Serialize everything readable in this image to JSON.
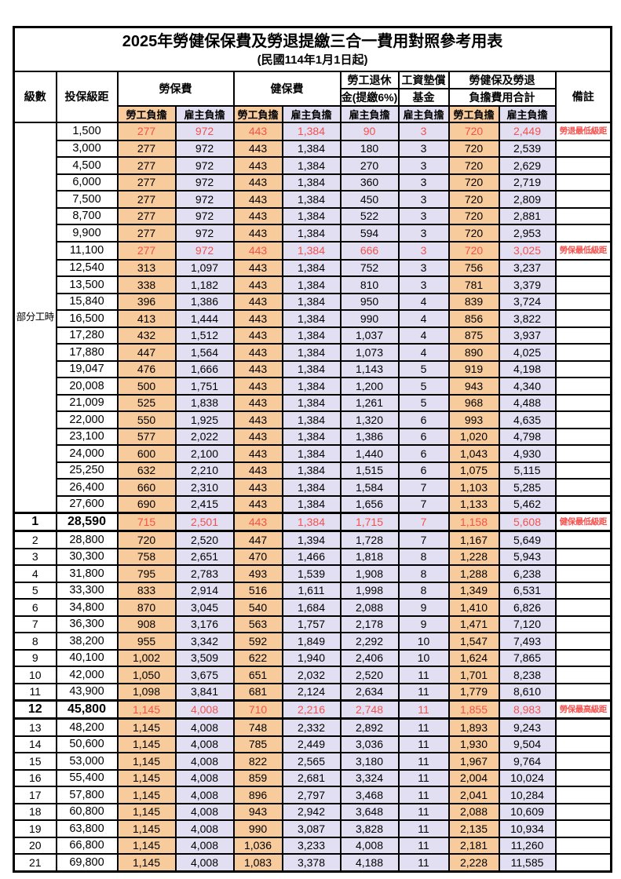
{
  "title": "2025年勞健保保費及勞退提繳三合一費用對照參考用表",
  "subtitle": "(民國114年1月1日起)",
  "header": {
    "level": "級數",
    "salary_bracket": "投保級距",
    "labor_insurance": "勞保費",
    "health_insurance": "健保費",
    "pension_line1": "勞工退休",
    "pension_line2": "金(提繳6%)",
    "wage_arrears_line1": "工資墊償",
    "wage_arrears_line2": "基金",
    "total_line1": "勞健保及勞退",
    "total_line2": "負擔費用合計",
    "remark": "備註",
    "employee_label": "勞工負擔",
    "employer_label": "雇主負擔"
  },
  "part_time_label": "部分工時",
  "part_time_rowspan": 23,
  "colors": {
    "employee_bg": "#F8CB9C",
    "employer_bg": "#E2DFF2",
    "highlight_text": "#F4514E"
  },
  "rows": [
    {
      "level": null,
      "salary": "1,500",
      "values": [
        "277",
        "972",
        "443",
        "1,384",
        "90",
        "3",
        "720",
        "2,449"
      ],
      "remark": "勞退最低級距",
      "highlight": true,
      "emphasis": false
    },
    {
      "level": null,
      "salary": "3,000",
      "values": [
        "277",
        "972",
        "443",
        "1,384",
        "180",
        "3",
        "720",
        "2,539"
      ],
      "remark": "",
      "highlight": false,
      "emphasis": false
    },
    {
      "level": null,
      "salary": "4,500",
      "values": [
        "277",
        "972",
        "443",
        "1,384",
        "270",
        "3",
        "720",
        "2,629"
      ],
      "remark": "",
      "highlight": false,
      "emphasis": false
    },
    {
      "level": null,
      "salary": "6,000",
      "values": [
        "277",
        "972",
        "443",
        "1,384",
        "360",
        "3",
        "720",
        "2,719"
      ],
      "remark": "",
      "highlight": false,
      "emphasis": false
    },
    {
      "level": null,
      "salary": "7,500",
      "values": [
        "277",
        "972",
        "443",
        "1,384",
        "450",
        "3",
        "720",
        "2,809"
      ],
      "remark": "",
      "highlight": false,
      "emphasis": false
    },
    {
      "level": null,
      "salary": "8,700",
      "values": [
        "277",
        "972",
        "443",
        "1,384",
        "522",
        "3",
        "720",
        "2,881"
      ],
      "remark": "",
      "highlight": false,
      "emphasis": false
    },
    {
      "level": null,
      "salary": "9,900",
      "values": [
        "277",
        "972",
        "443",
        "1,384",
        "594",
        "3",
        "720",
        "2,953"
      ],
      "remark": "",
      "highlight": false,
      "emphasis": false
    },
    {
      "level": null,
      "salary": "11,100",
      "values": [
        "277",
        "972",
        "443",
        "1,384",
        "666",
        "3",
        "720",
        "3,025"
      ],
      "remark": "勞保最低級距",
      "highlight": true,
      "emphasis": false
    },
    {
      "level": null,
      "salary": "12,540",
      "values": [
        "313",
        "1,097",
        "443",
        "1,384",
        "752",
        "3",
        "756",
        "3,237"
      ],
      "remark": "",
      "highlight": false,
      "emphasis": false
    },
    {
      "level": null,
      "salary": "13,500",
      "values": [
        "338",
        "1,182",
        "443",
        "1,384",
        "810",
        "3",
        "781",
        "3,379"
      ],
      "remark": "",
      "highlight": false,
      "emphasis": false
    },
    {
      "level": null,
      "salary": "15,840",
      "values": [
        "396",
        "1,386",
        "443",
        "1,384",
        "950",
        "4",
        "839",
        "3,724"
      ],
      "remark": "",
      "highlight": false,
      "emphasis": false
    },
    {
      "level": null,
      "salary": "16,500",
      "values": [
        "413",
        "1,444",
        "443",
        "1,384",
        "990",
        "4",
        "856",
        "3,822"
      ],
      "remark": "",
      "highlight": false,
      "emphasis": false
    },
    {
      "level": null,
      "salary": "17,280",
      "values": [
        "432",
        "1,512",
        "443",
        "1,384",
        "1,037",
        "4",
        "875",
        "3,937"
      ],
      "remark": "",
      "highlight": false,
      "emphasis": false
    },
    {
      "level": null,
      "salary": "17,880",
      "values": [
        "447",
        "1,564",
        "443",
        "1,384",
        "1,073",
        "4",
        "890",
        "4,025"
      ],
      "remark": "",
      "highlight": false,
      "emphasis": false
    },
    {
      "level": null,
      "salary": "19,047",
      "values": [
        "476",
        "1,666",
        "443",
        "1,384",
        "1,143",
        "5",
        "919",
        "4,198"
      ],
      "remark": "",
      "highlight": false,
      "emphasis": false
    },
    {
      "level": null,
      "salary": "20,008",
      "values": [
        "500",
        "1,751",
        "443",
        "1,384",
        "1,200",
        "5",
        "943",
        "4,340"
      ],
      "remark": "",
      "highlight": false,
      "emphasis": false
    },
    {
      "level": null,
      "salary": "21,009",
      "values": [
        "525",
        "1,838",
        "443",
        "1,384",
        "1,261",
        "5",
        "968",
        "4,488"
      ],
      "remark": "",
      "highlight": false,
      "emphasis": false
    },
    {
      "level": null,
      "salary": "22,000",
      "values": [
        "550",
        "1,925",
        "443",
        "1,384",
        "1,320",
        "6",
        "993",
        "4,635"
      ],
      "remark": "",
      "highlight": false,
      "emphasis": false
    },
    {
      "level": null,
      "salary": "23,100",
      "values": [
        "577",
        "2,022",
        "443",
        "1,384",
        "1,386",
        "6",
        "1,020",
        "4,798"
      ],
      "remark": "",
      "highlight": false,
      "emphasis": false
    },
    {
      "level": null,
      "salary": "24,000",
      "values": [
        "600",
        "2,100",
        "443",
        "1,384",
        "1,440",
        "6",
        "1,043",
        "4,930"
      ],
      "remark": "",
      "highlight": false,
      "emphasis": false
    },
    {
      "level": null,
      "salary": "25,250",
      "values": [
        "632",
        "2,210",
        "443",
        "1,384",
        "1,515",
        "6",
        "1,075",
        "5,115"
      ],
      "remark": "",
      "highlight": false,
      "emphasis": false
    },
    {
      "level": null,
      "salary": "26,400",
      "values": [
        "660",
        "2,310",
        "443",
        "1,384",
        "1,584",
        "7",
        "1,103",
        "5,285"
      ],
      "remark": "",
      "highlight": false,
      "emphasis": false
    },
    {
      "level": null,
      "salary": "27,600",
      "values": [
        "690",
        "2,415",
        "443",
        "1,384",
        "1,656",
        "7",
        "1,133",
        "5,462"
      ],
      "remark": "",
      "highlight": false,
      "emphasis": false
    },
    {
      "level": "1",
      "salary": "28,590",
      "values": [
        "715",
        "2,501",
        "443",
        "1,384",
        "1,715",
        "7",
        "1,158",
        "5,608"
      ],
      "remark": "健保最低級距",
      "highlight": true,
      "emphasis": true
    },
    {
      "level": "2",
      "salary": "28,800",
      "values": [
        "720",
        "2,520",
        "447",
        "1,394",
        "1,728",
        "7",
        "1,167",
        "5,649"
      ],
      "remark": "",
      "highlight": false,
      "emphasis": false
    },
    {
      "level": "3",
      "salary": "30,300",
      "values": [
        "758",
        "2,651",
        "470",
        "1,466",
        "1,818",
        "8",
        "1,228",
        "5,943"
      ],
      "remark": "",
      "highlight": false,
      "emphasis": false
    },
    {
      "level": "4",
      "salary": "31,800",
      "values": [
        "795",
        "2,783",
        "493",
        "1,539",
        "1,908",
        "8",
        "1,288",
        "6,238"
      ],
      "remark": "",
      "highlight": false,
      "emphasis": false
    },
    {
      "level": "5",
      "salary": "33,300",
      "values": [
        "833",
        "2,914",
        "516",
        "1,611",
        "1,998",
        "8",
        "1,349",
        "6,531"
      ],
      "remark": "",
      "highlight": false,
      "emphasis": false
    },
    {
      "level": "6",
      "salary": "34,800",
      "values": [
        "870",
        "3,045",
        "540",
        "1,684",
        "2,088",
        "9",
        "1,410",
        "6,826"
      ],
      "remark": "",
      "highlight": false,
      "emphasis": false
    },
    {
      "level": "7",
      "salary": "36,300",
      "values": [
        "908",
        "3,176",
        "563",
        "1,757",
        "2,178",
        "9",
        "1,471",
        "7,120"
      ],
      "remark": "",
      "highlight": false,
      "emphasis": false
    },
    {
      "level": "8",
      "salary": "38,200",
      "values": [
        "955",
        "3,342",
        "592",
        "1,849",
        "2,292",
        "10",
        "1,547",
        "7,493"
      ],
      "remark": "",
      "highlight": false,
      "emphasis": false
    },
    {
      "level": "9",
      "salary": "40,100",
      "values": [
        "1,002",
        "3,509",
        "622",
        "1,940",
        "2,406",
        "10",
        "1,624",
        "7,865"
      ],
      "remark": "",
      "highlight": false,
      "emphasis": false
    },
    {
      "level": "10",
      "salary": "42,000",
      "values": [
        "1,050",
        "3,675",
        "651",
        "2,032",
        "2,520",
        "11",
        "1,701",
        "8,238"
      ],
      "remark": "",
      "highlight": false,
      "emphasis": false
    },
    {
      "level": "11",
      "salary": "43,900",
      "values": [
        "1,098",
        "3,841",
        "681",
        "2,124",
        "2,634",
        "11",
        "1,779",
        "8,610"
      ],
      "remark": "",
      "highlight": false,
      "emphasis": false
    },
    {
      "level": "12",
      "salary": "45,800",
      "values": [
        "1,145",
        "4,008",
        "710",
        "2,216",
        "2,748",
        "11",
        "1,855",
        "8,983"
      ],
      "remark": "勞保最高級距",
      "highlight": true,
      "emphasis": true
    },
    {
      "level": "13",
      "salary": "48,200",
      "values": [
        "1,145",
        "4,008",
        "748",
        "2,332",
        "2,892",
        "11",
        "1,893",
        "9,243"
      ],
      "remark": "",
      "highlight": false,
      "emphasis": false
    },
    {
      "level": "14",
      "salary": "50,600",
      "values": [
        "1,145",
        "4,008",
        "785",
        "2,449",
        "3,036",
        "11",
        "1,930",
        "9,504"
      ],
      "remark": "",
      "highlight": false,
      "emphasis": false
    },
    {
      "level": "15",
      "salary": "53,000",
      "values": [
        "1,145",
        "4,008",
        "822",
        "2,565",
        "3,180",
        "11",
        "1,967",
        "9,764"
      ],
      "remark": "",
      "highlight": false,
      "emphasis": false
    },
    {
      "level": "16",
      "salary": "55,400",
      "values": [
        "1,145",
        "4,008",
        "859",
        "2,681",
        "3,324",
        "11",
        "2,004",
        "10,024"
      ],
      "remark": "",
      "highlight": false,
      "emphasis": false
    },
    {
      "level": "17",
      "salary": "57,800",
      "values": [
        "1,145",
        "4,008",
        "896",
        "2,797",
        "3,468",
        "11",
        "2,041",
        "10,284"
      ],
      "remark": "",
      "highlight": false,
      "emphasis": false
    },
    {
      "level": "18",
      "salary": "60,800",
      "values": [
        "1,145",
        "4,008",
        "943",
        "2,942",
        "3,648",
        "11",
        "2,088",
        "10,609"
      ],
      "remark": "",
      "highlight": false,
      "emphasis": false
    },
    {
      "level": "19",
      "salary": "63,800",
      "values": [
        "1,145",
        "4,008",
        "990",
        "3,087",
        "3,828",
        "11",
        "2,135",
        "10,934"
      ],
      "remark": "",
      "highlight": false,
      "emphasis": false
    },
    {
      "level": "20",
      "salary": "66,800",
      "values": [
        "1,145",
        "4,008",
        "1,036",
        "3,233",
        "4,008",
        "11",
        "2,181",
        "11,260"
      ],
      "remark": "",
      "highlight": false,
      "emphasis": false
    },
    {
      "level": "21",
      "salary": "69,800",
      "values": [
        "1,145",
        "4,008",
        "1,083",
        "3,378",
        "4,188",
        "11",
        "2,228",
        "11,585"
      ],
      "remark": "",
      "highlight": false,
      "emphasis": false
    }
  ]
}
